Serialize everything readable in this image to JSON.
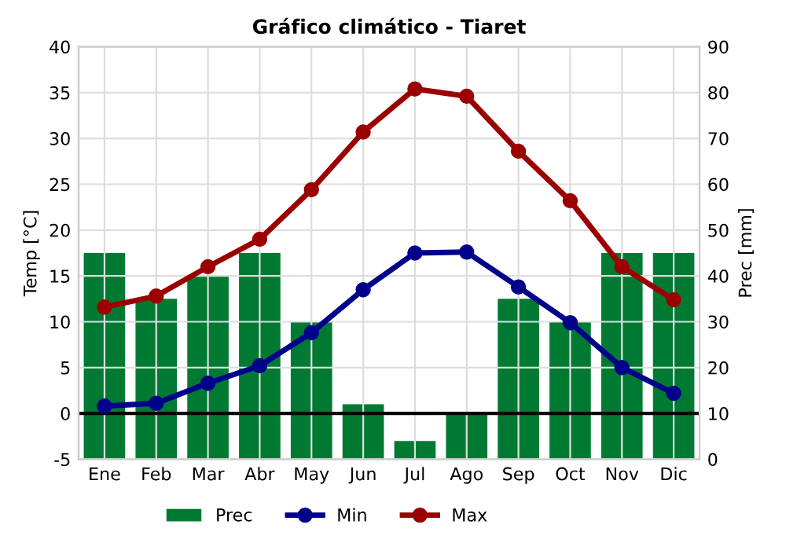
{
  "chart_data": {
    "type": "line",
    "title": "Gráfico climático - Tiaret",
    "ylabel": "Temp [°C]",
    "y2label": "Prec [mm]",
    "categories": [
      "Ene",
      "Feb",
      "Mar",
      "Abr",
      "May",
      "Jun",
      "Jul",
      "Ago",
      "Sep",
      "Oct",
      "Nov",
      "Dic"
    ],
    "series": [
      {
        "name": "Prec",
        "type": "bar",
        "axis": "y2",
        "color": "#007a33",
        "values": [
          45,
          35,
          40,
          45,
          30,
          12,
          4,
          10,
          35,
          30,
          45,
          45
        ]
      },
      {
        "name": "Min",
        "color": "#00008b",
        "values": [
          0.8,
          1.1,
          3.3,
          5.2,
          8.8,
          13.5,
          17.5,
          17.6,
          13.8,
          9.9,
          5.0,
          2.2
        ]
      },
      {
        "name": "Max",
        "color": "#9b0000",
        "values": [
          11.6,
          12.8,
          16.0,
          19.0,
          24.4,
          30.7,
          35.4,
          34.6,
          28.6,
          23.2,
          16.0,
          12.4
        ]
      }
    ],
    "ylim": [
      -5,
      40
    ],
    "yticks": [
      -5,
      0,
      5,
      10,
      15,
      20,
      25,
      30,
      35,
      40
    ],
    "y2lim": [
      0,
      90
    ],
    "y2ticks": [
      0,
      10,
      20,
      30,
      40,
      50,
      60,
      70,
      80,
      90
    ],
    "ref_lines": [
      {
        "axis": "y",
        "value": 0,
        "color": "#000000"
      }
    ],
    "grid": true,
    "legend": "bottom",
    "marker": "circle",
    "line_style": "solid"
  }
}
